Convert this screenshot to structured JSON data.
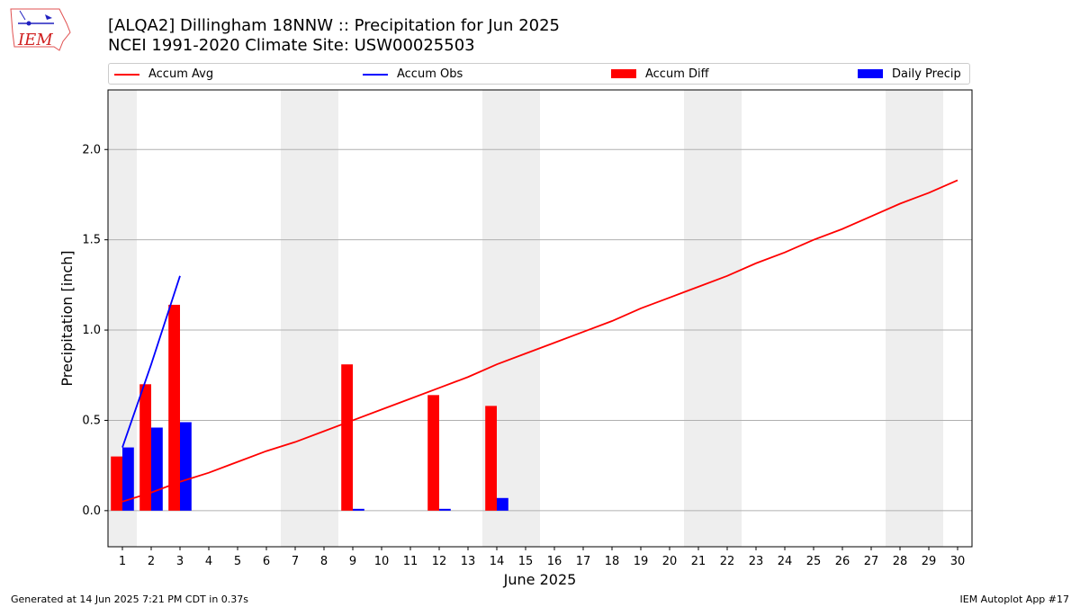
{
  "header": {
    "title_line1": "[ALQA2] Dillingham 18NNW :: Precipitation for Jun 2025",
    "title_line2": "NCEI 1991-2020 Climate Site: USW00025503"
  },
  "logo": {
    "text": "IEM"
  },
  "footer": {
    "generated": "Generated at 14 Jun 2025 7:21 PM CDT in 0.37s",
    "app": "IEM Autoplot App #17"
  },
  "colors": {
    "accum_avg": "#ff0000",
    "accum_obs": "#0000ff",
    "accum_diff": "#ff0000",
    "daily_precip": "#0000ff",
    "weekend_shade": "#eeeeee",
    "grid": "#b0b0b0"
  },
  "chart_data": {
    "type": "bar",
    "title": "[ALQA2] Dillingham 18NNW :: Precipitation for Jun 2025",
    "subtitle": "NCEI 1991-2020 Climate Site: USW00025503",
    "xlabel": "June 2025",
    "ylabel": "Precipitation [inch]",
    "x": [
      1,
      2,
      3,
      4,
      5,
      6,
      7,
      8,
      9,
      10,
      11,
      12,
      13,
      14,
      15,
      16,
      17,
      18,
      19,
      20,
      21,
      22,
      23,
      24,
      25,
      26,
      27,
      28,
      29,
      30
    ],
    "xlim": [
      0.5,
      30.5
    ],
    "ylim": [
      -0.2,
      2.33
    ],
    "yticks": [
      0.0,
      0.5,
      1.0,
      1.5,
      2.0
    ],
    "ytick_labels": [
      "0.0",
      "0.5",
      "1.0",
      "1.5",
      "2.0"
    ],
    "grid": "horizontal",
    "legend_position": "top, above plot",
    "weekend_shading": [
      [
        0.5,
        1.5
      ],
      [
        6.5,
        8.5
      ],
      [
        13.5,
        15.5
      ],
      [
        20.5,
        22.5
      ],
      [
        27.5,
        29.5
      ]
    ],
    "series": [
      {
        "name": "Accum Avg",
        "kind": "line",
        "x": [
          1,
          2,
          3,
          4,
          5,
          6,
          7,
          8,
          9,
          10,
          11,
          12,
          13,
          14,
          15,
          16,
          17,
          18,
          19,
          20,
          21,
          22,
          23,
          24,
          25,
          26,
          27,
          28,
          29,
          30
        ],
        "values": [
          0.05,
          0.1,
          0.16,
          0.21,
          0.27,
          0.33,
          0.38,
          0.44,
          0.5,
          0.56,
          0.62,
          0.68,
          0.74,
          0.81,
          0.87,
          0.93,
          0.99,
          1.05,
          1.12,
          1.18,
          1.24,
          1.3,
          1.37,
          1.43,
          1.5,
          1.56,
          1.63,
          1.7,
          1.76,
          1.83
        ]
      },
      {
        "name": "Accum Obs",
        "kind": "line",
        "x": [
          1,
          2,
          3
        ],
        "values": [
          0.35,
          0.81,
          1.3
        ]
      },
      {
        "name": "Accum Diff",
        "kind": "bar",
        "x": [
          1,
          2,
          3,
          9,
          12,
          14
        ],
        "values": [
          0.3,
          0.7,
          1.14,
          0.81,
          0.64,
          0.58
        ]
      },
      {
        "name": "Daily Precip",
        "kind": "bar",
        "x": [
          1,
          2,
          3,
          9,
          12,
          14
        ],
        "values": [
          0.35,
          0.46,
          0.49,
          0.01,
          0.01,
          0.07
        ]
      }
    ]
  }
}
